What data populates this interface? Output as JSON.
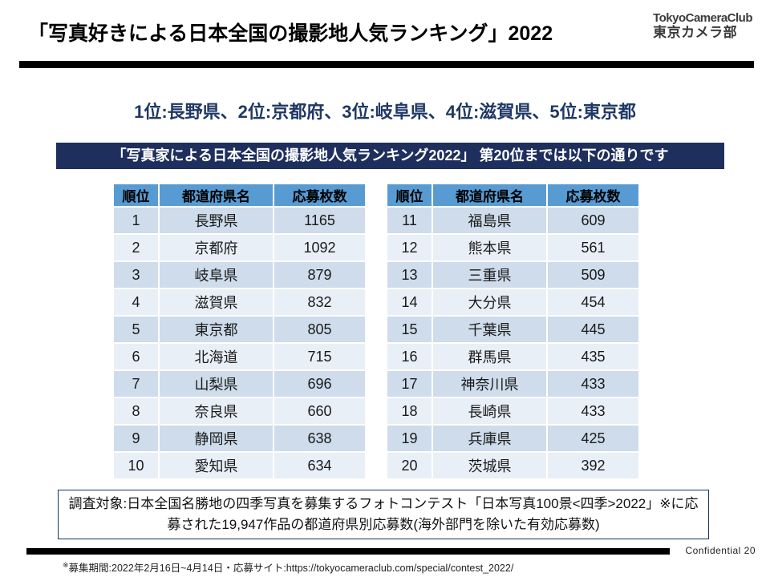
{
  "slide": {
    "title": "「写真好きによる日本全国の撮影地人気ランキング」2022",
    "logo": {
      "line1": "TokyoCameraClub",
      "line2": "東京カメラ部"
    },
    "summary": "1位:長野県、2位:京都府、3位:岐阜県、4位:滋賀県、5位:東京都",
    "banner": "「写真家による日本全国の撮影地人気ランキング2022」 第20位までは以下の通りです",
    "note_box": "調査対象:日本全国名勝地の四季写真を募集するフォトコンテスト「日本写真100景<四季>2022」※に応募された19,947作品の都道府県別応募数(海外部門を除いた有効応募数)",
    "footer": {
      "confidential": "Confidential 20",
      "note_mark": "※",
      "note_text": "募集期間:2022年2月16日~4月14日・応募サイト:https://tokyocameraclub.com/special/contest_2022/"
    }
  },
  "table": {
    "headers": [
      "順位",
      "都道府県名",
      "応募枚数"
    ],
    "left_rows": [
      [
        "1",
        "長野県",
        "1165"
      ],
      [
        "2",
        "京都府",
        "1092"
      ],
      [
        "3",
        "岐阜県",
        "879"
      ],
      [
        "4",
        "滋賀県",
        "832"
      ],
      [
        "5",
        "東京都",
        "805"
      ],
      [
        "6",
        "北海道",
        "715"
      ],
      [
        "7",
        "山梨県",
        "696"
      ],
      [
        "8",
        "奈良県",
        "660"
      ],
      [
        "9",
        "静岡県",
        "638"
      ],
      [
        "10",
        "愛知県",
        "634"
      ]
    ],
    "right_rows": [
      [
        "11",
        "福島県",
        "609"
      ],
      [
        "12",
        "熊本県",
        "561"
      ],
      [
        "13",
        "三重県",
        "509"
      ],
      [
        "14",
        "大分県",
        "454"
      ],
      [
        "15",
        "千葉県",
        "445"
      ],
      [
        "16",
        "群馬県",
        "435"
      ],
      [
        "17",
        "神奈川県",
        "433"
      ],
      [
        "18",
        "長崎県",
        "433"
      ],
      [
        "19",
        "兵庫県",
        "425"
      ],
      [
        "20",
        "茨城県",
        "392"
      ]
    ]
  },
  "colors": {
    "accent_navy": "#1E2F5E",
    "summary_text": "#1F3864",
    "table_header_blue": "#589BD3",
    "band_dark": "#CEDCEB",
    "band_light": "#E9EFF7",
    "divider_black": "#000000"
  }
}
